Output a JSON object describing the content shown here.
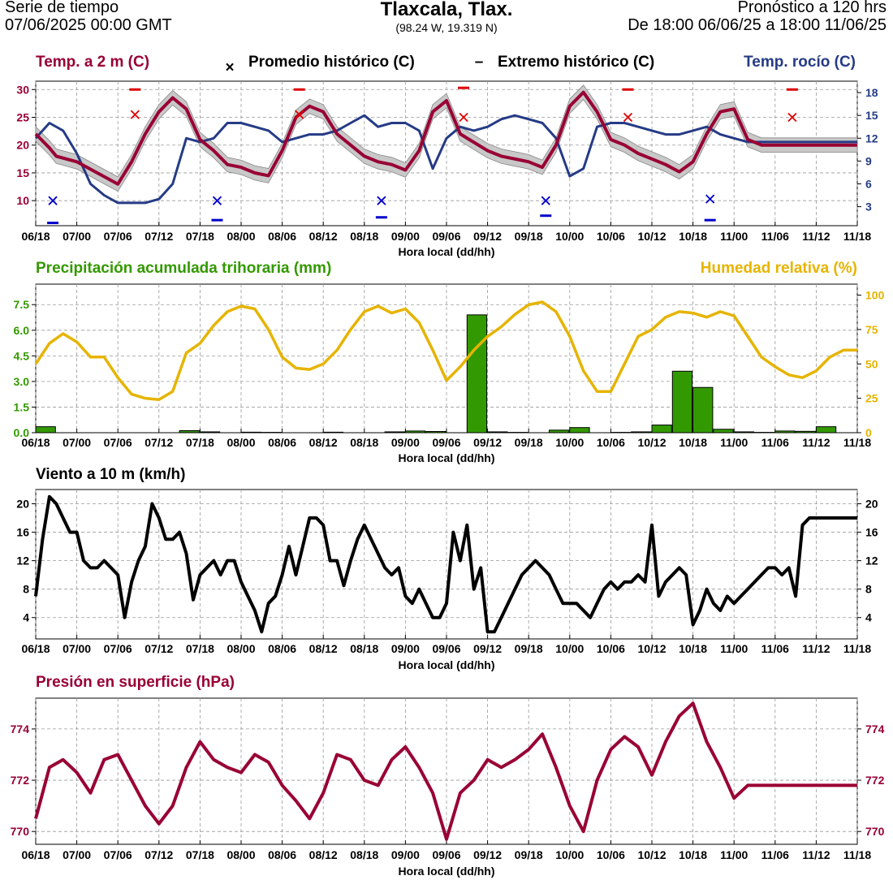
{
  "header": {
    "left_line1": "Serie de tiempo",
    "left_line2": "07/06/2025 00:00 GMT",
    "center_title": "Tlaxcala,  Tlax.",
    "center_coords": "(98.24 W, 19.319 N)",
    "right_line1": "Pronóstico a 120 hrs",
    "right_line2": "De 18:00 06/06/25 a 18:00 11/06/25"
  },
  "colors": {
    "temperature": "#990033",
    "dewpoint": "#253b86",
    "precip": "#339900",
    "humidity": "#e6b400",
    "wind": "#000000",
    "pressure": "#990033",
    "hist_mean_marker": "#e00000",
    "hist_low_marker": "#0000cc",
    "band": "#c8c8c8",
    "grid": "#999999"
  },
  "chart_data": [
    {
      "type": "line",
      "panel": "temperature",
      "title_left": "Temp. a 2 m (C)",
      "legend_mean_symbol": "×",
      "legend_mean_label": "Promedio histórico (C)",
      "legend_extreme_symbol": "–",
      "legend_extreme_label": "Extremo histórico (C)",
      "title_right": "Temp. rocío (C)",
      "xlabel": "Hora local (dd/hh)",
      "x_tick_labels": [
        "06/18",
        "07/00",
        "07/06",
        "07/12",
        "07/18",
        "08/00",
        "08/06",
        "08/12",
        "08/18",
        "09/00",
        "09/06",
        "09/12",
        "09/18",
        "10/00",
        "10/06",
        "10/12",
        "10/18",
        "11/00",
        "11/06",
        "11/12",
        "11/18"
      ],
      "x_range_hours": [
        0,
        120
      ],
      "ylim_left": [
        5.5,
        31.5
      ],
      "yticks_left": [
        "10",
        "15",
        "20",
        "25",
        "30"
      ],
      "ylim_right": [
        0.5,
        19.5
      ],
      "yticks_right": [
        "3",
        "6",
        "9",
        "12",
        "15",
        "18"
      ],
      "band_halfwidth": 1.3,
      "series": [
        {
          "name": "Temp. a 2 m (C)",
          "axis": "left",
          "x": [
            0,
            2,
            3,
            6,
            9,
            12,
            14,
            16,
            18,
            20,
            22,
            24,
            26,
            28,
            30,
            32,
            34,
            36,
            38,
            40,
            42,
            44,
            46,
            48,
            50,
            52,
            54,
            56,
            58,
            60,
            62,
            64,
            66,
            68,
            70,
            72,
            74,
            76,
            78,
            80,
            82,
            84,
            86,
            88,
            90,
            92,
            94,
            96,
            98,
            100,
            102,
            104,
            106,
            108,
            110,
            112,
            114,
            116,
            118,
            120
          ],
          "values": [
            22,
            19.5,
            18,
            17,
            15,
            13,
            17,
            22,
            26,
            28.5,
            26.5,
            21,
            19,
            16.5,
            16,
            15,
            14.5,
            19,
            25,
            27,
            26,
            22,
            20,
            18,
            17,
            16.5,
            15.5,
            19,
            26,
            28,
            22,
            20.5,
            19,
            18,
            17.5,
            17,
            16,
            20,
            27,
            29.5,
            26,
            21,
            20,
            18.5,
            17.5,
            16.5,
            15.2,
            17,
            22,
            26,
            26.5,
            21,
            20,
            20,
            20,
            20,
            20,
            20,
            20,
            20
          ]
        },
        {
          "name": "Temp. rocío (C)",
          "axis": "right",
          "x": [
            0,
            2,
            4,
            6,
            8,
            10,
            12,
            14,
            16,
            18,
            20,
            22,
            24,
            26,
            28,
            30,
            32,
            34,
            36,
            38,
            40,
            42,
            44,
            46,
            48,
            50,
            52,
            54,
            56,
            58,
            60,
            62,
            64,
            66,
            68,
            70,
            72,
            74,
            76,
            78,
            80,
            82,
            84,
            86,
            88,
            90,
            92,
            94,
            96,
            98,
            100,
            102,
            104,
            106,
            108,
            110,
            112,
            114,
            116,
            118,
            120
          ],
          "values": [
            12,
            14,
            13,
            10,
            6,
            4.5,
            3.5,
            3.5,
            3.5,
            4,
            6,
            12,
            11.5,
            12,
            14,
            14,
            13.5,
            13,
            11.5,
            12,
            12.5,
            12.5,
            13,
            14,
            15,
            13.5,
            14,
            14,
            13,
            8,
            12,
            13.5,
            13,
            13.5,
            14.5,
            15,
            14.5,
            14,
            12,
            7,
            8,
            13.5,
            14,
            14,
            13.5,
            13,
            12.5,
            12.5,
            13,
            13.5,
            12.5,
            12,
            11.5,
            11.5,
            11.5,
            11.5,
            11.5,
            11.5,
            11.5,
            11.5,
            11.5
          ]
        },
        {
          "name": "Promedio histórico (C)",
          "axis": "left",
          "marker": "x",
          "x": [
            2.5,
            14.5,
            26.5,
            38.5,
            50.5,
            62.5,
            74.5,
            86.5,
            98.5,
            110.5
          ],
          "values": [
            10,
            25.5,
            10,
            25.5,
            10,
            25,
            10,
            25,
            10.3,
            25
          ]
        },
        {
          "name": "Extremo histórico (C)",
          "axis": "left",
          "marker": "dash",
          "x": [
            2.5,
            14.5,
            26.5,
            38.5,
            50.5,
            62.5,
            74.5,
            86.5,
            98.5,
            110.5
          ],
          "values": [
            6,
            30,
            6.5,
            30,
            7,
            30.3,
            7.3,
            30,
            6.5,
            30
          ]
        }
      ]
    },
    {
      "type": "bar",
      "panel": "precipitation",
      "title_left": "Precipitación acumulada trihoraria (mm)",
      "title_right": "Humedad relativa (%)",
      "xlabel": "Hora local (dd/hh)",
      "x_range_hours": [
        0,
        120
      ],
      "ylim_left": [
        0,
        8.7
      ],
      "yticks_left": [
        "0.0",
        "1.5",
        "3.0",
        "4.5",
        "6.0",
        "7.5"
      ],
      "ylim_right": [
        0,
        108
      ],
      "yticks_right": [
        "0",
        "25",
        "50",
        "75",
        "100"
      ],
      "series": [
        {
          "name": "Precipitación acumulada trihoraria (mm)",
          "axis": "left",
          "x": [
            0,
            3,
            6,
            9,
            12,
            15,
            18,
            21,
            24,
            27,
            30,
            33,
            36,
            39,
            42,
            45,
            48,
            51,
            54,
            57,
            60,
            63,
            66,
            69,
            72,
            75,
            78,
            81,
            84,
            87,
            90,
            93,
            96,
            99,
            102,
            105,
            108,
            111,
            114,
            117
          ],
          "values": [
            0.35,
            0,
            0,
            0,
            0,
            0,
            0,
            0.12,
            0.05,
            0,
            0.03,
            0.02,
            0,
            0,
            0.03,
            0,
            0,
            0.05,
            0.1,
            0.07,
            0,
            6.9,
            0.05,
            0.02,
            0,
            0.15,
            0.3,
            0,
            0.02,
            0.05,
            0.45,
            3.6,
            2.65,
            0.2,
            0.05,
            0.02,
            0.1,
            0.08,
            0.35,
            0
          ]
        },
        {
          "name": "Humedad relativa (%)",
          "axis": "right",
          "x": [
            0,
            2,
            4,
            6,
            8,
            10,
            12,
            14,
            16,
            18,
            20,
            22,
            24,
            26,
            28,
            30,
            32,
            34,
            36,
            38,
            40,
            42,
            44,
            46,
            48,
            50,
            52,
            54,
            56,
            58,
            60,
            62,
            64,
            66,
            68,
            70,
            72,
            74,
            76,
            78,
            80,
            82,
            84,
            86,
            88,
            90,
            92,
            94,
            96,
            98,
            100,
            102,
            104,
            106,
            108,
            110,
            112,
            114,
            116,
            118,
            120
          ],
          "values": [
            50,
            65,
            72,
            66,
            55,
            55,
            40,
            28,
            25,
            24,
            30,
            58,
            65,
            78,
            88,
            92,
            90,
            75,
            55,
            47,
            46,
            50,
            60,
            75,
            88,
            92,
            87,
            90,
            80,
            60,
            38,
            48,
            60,
            70,
            77,
            86,
            93,
            95,
            88,
            70,
            45,
            30,
            30,
            50,
            70,
            75,
            84,
            88,
            87,
            84,
            88,
            85,
            70,
            55,
            48,
            42,
            40,
            45,
            55,
            60,
            60
          ]
        }
      ]
    },
    {
      "type": "line",
      "panel": "wind",
      "title_left": "Viento a 10 m (km/h)",
      "xlabel": "Hora local (dd/hh)",
      "x_range_hours": [
        0,
        120
      ],
      "ylim": [
        1,
        22
      ],
      "yticks": [
        "4",
        "8",
        "12",
        "16",
        "20"
      ],
      "series": [
        {
          "name": "Viento a 10 m (km/h)",
          "x": [
            0,
            1,
            2,
            3,
            4,
            5,
            6,
            7,
            8,
            9,
            10,
            11,
            12,
            13,
            14,
            15,
            16,
            17,
            18,
            19,
            20,
            21,
            22,
            23,
            24,
            25,
            26,
            27,
            28,
            29,
            30,
            31,
            32,
            33,
            34,
            35,
            36,
            37,
            38,
            39,
            40,
            41,
            42,
            43,
            44,
            45,
            46,
            47,
            48,
            49,
            50,
            51,
            52,
            53,
            54,
            55,
            56,
            57,
            58,
            59,
            60,
            61,
            62,
            63,
            64,
            65,
            66,
            67,
            68,
            69,
            70,
            71,
            72,
            73,
            74,
            75,
            76,
            77,
            78,
            79,
            80,
            81,
            82,
            83,
            84,
            85,
            86,
            87,
            88,
            89,
            90,
            91,
            92,
            93,
            94,
            95,
            96,
            97,
            98,
            99,
            100,
            101,
            102,
            103,
            104,
            105,
            106,
            107,
            108,
            109,
            110,
            111,
            112,
            113,
            114,
            115,
            116,
            117,
            118,
            119,
            120
          ],
          "values": [
            7,
            15,
            21,
            20,
            18,
            16,
            16,
            12,
            11,
            11,
            12,
            11,
            10,
            4,
            9,
            12,
            14,
            20,
            18,
            15,
            15,
            16,
            13,
            6.5,
            10,
            11,
            12,
            10,
            12,
            12,
            9,
            7,
            5,
            2,
            6,
            7,
            10,
            14,
            10,
            14,
            18,
            18,
            17,
            12,
            12,
            8.5,
            12,
            15,
            17,
            15,
            13,
            11,
            10,
            11,
            7,
            6,
            8,
            6,
            4,
            4,
            6,
            16,
            12,
            17,
            8,
            11,
            2,
            2,
            4,
            6,
            8,
            10,
            11,
            12,
            11,
            10,
            8,
            6,
            6,
            6,
            5,
            4,
            6,
            8,
            9,
            8,
            9,
            9,
            10,
            9,
            17,
            7,
            9,
            10,
            11,
            10,
            3,
            5,
            8,
            6,
            5,
            7,
            6,
            7,
            8,
            9,
            10,
            11,
            11,
            10,
            11,
            7,
            17,
            18,
            18,
            18,
            18,
            18,
            18,
            18,
            18
          ]
        }
      ]
    },
    {
      "type": "line",
      "panel": "pressure",
      "title_left": "Presión en superficie (hPa)",
      "xlabel": "Hora local (dd/hh)",
      "x_range_hours": [
        0,
        120
      ],
      "ylim": [
        769.5,
        775.2
      ],
      "yticks": [
        "770",
        "772",
        "774"
      ],
      "series": [
        {
          "name": "Presión en superficie (hPa)",
          "x": [
            0,
            2,
            4,
            6,
            8,
            10,
            12,
            14,
            16,
            18,
            20,
            22,
            24,
            26,
            28,
            30,
            32,
            34,
            36,
            38,
            40,
            42,
            44,
            46,
            48,
            50,
            52,
            54,
            56,
            58,
            60,
            62,
            64,
            66,
            68,
            70,
            72,
            74,
            76,
            78,
            80,
            82,
            84,
            86,
            88,
            90,
            92,
            94,
            96,
            98,
            100,
            102,
            104,
            106,
            108,
            110,
            112,
            114,
            116,
            118,
            120
          ],
          "values": [
            770.5,
            772.5,
            772.8,
            772.3,
            771.5,
            772.8,
            773,
            772,
            771,
            770.3,
            771,
            772.5,
            773.5,
            772.8,
            772.5,
            772.3,
            773,
            772.7,
            771.8,
            771.2,
            770.5,
            771.5,
            773,
            772.8,
            772,
            771.8,
            772.8,
            773.3,
            772.5,
            771.5,
            769.7,
            771.5,
            772,
            772.8,
            772.5,
            772.8,
            773.2,
            773.8,
            772.5,
            771,
            770,
            772,
            773.2,
            773.7,
            773.3,
            772.2,
            773.5,
            774.5,
            775,
            773.5,
            772.5,
            771.3,
            771.8,
            771.8,
            771.8,
            771.8,
            771.8,
            771.8,
            771.8,
            771.8,
            771.8
          ]
        }
      ]
    }
  ]
}
